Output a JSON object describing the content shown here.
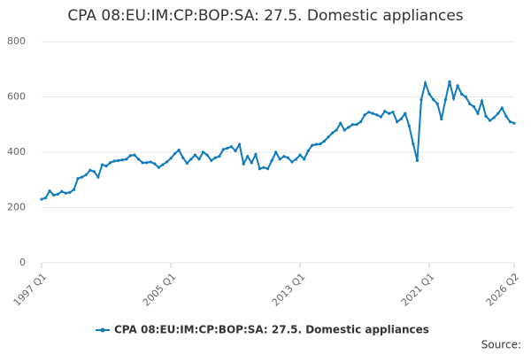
{
  "chart_data": {
    "type": "line",
    "title": "CPA 08:EU:IM:CP:BOP:SA: 27.5. Domestic appliances",
    "source_label": "Source:",
    "categories": [
      "1997 Q1",
      null,
      null,
      null,
      null,
      null,
      null,
      null,
      null,
      null,
      null,
      null,
      null,
      null,
      null,
      null,
      null,
      null,
      null,
      null,
      null,
      null,
      null,
      null,
      null,
      null,
      null,
      null,
      null,
      null,
      null,
      null,
      "2005 Q1",
      null,
      null,
      null,
      null,
      null,
      null,
      null,
      null,
      null,
      null,
      null,
      null,
      null,
      null,
      null,
      null,
      null,
      null,
      null,
      null,
      null,
      null,
      null,
      null,
      null,
      null,
      null,
      null,
      null,
      null,
      null,
      "2013 Q1",
      null,
      null,
      null,
      null,
      null,
      null,
      null,
      null,
      null,
      null,
      null,
      null,
      null,
      null,
      null,
      null,
      null,
      null,
      null,
      null,
      null,
      null,
      null,
      null,
      null,
      null,
      null,
      null,
      null,
      null,
      null,
      "2021 Q1",
      null,
      null,
      null,
      null,
      null,
      null,
      null,
      null,
      null,
      null,
      null,
      null,
      null,
      null,
      null,
      null,
      null,
      null,
      null,
      null,
      "2026 Q2"
    ],
    "series": [
      {
        "name": "CPA 08:EU:IM:CP:BOP:SA: 27.5. Domestic appliances",
        "color": "#0f7bbd",
        "values": [
          230,
          235,
          260,
          245,
          248,
          258,
          252,
          255,
          265,
          305,
          310,
          318,
          335,
          330,
          310,
          355,
          350,
          362,
          368,
          370,
          372,
          375,
          388,
          390,
          375,
          362,
          362,
          365,
          358,
          345,
          355,
          365,
          378,
          395,
          408,
          380,
          360,
          375,
          390,
          375,
          400,
          390,
          370,
          380,
          385,
          410,
          415,
          420,
          405,
          428,
          358,
          385,
          362,
          392,
          340,
          345,
          340,
          370,
          400,
          375,
          385,
          380,
          365,
          375,
          390,
          375,
          405,
          425,
          428,
          430,
          440,
          455,
          470,
          480,
          505,
          480,
          490,
          500,
          500,
          510,
          535,
          545,
          540,
          535,
          528,
          548,
          540,
          545,
          510,
          520,
          540,
          495,
          430,
          370,
          590,
          650,
          610,
          590,
          575,
          520,
          590,
          655,
          595,
          640,
          610,
          600,
          575,
          565,
          540,
          585,
          530,
          515,
          525,
          540,
          560,
          530,
          510,
          505
        ]
      }
    ],
    "ylim": [
      0,
      800
    ],
    "yticks": [
      0,
      200,
      400,
      600,
      800
    ],
    "grid": true
  }
}
